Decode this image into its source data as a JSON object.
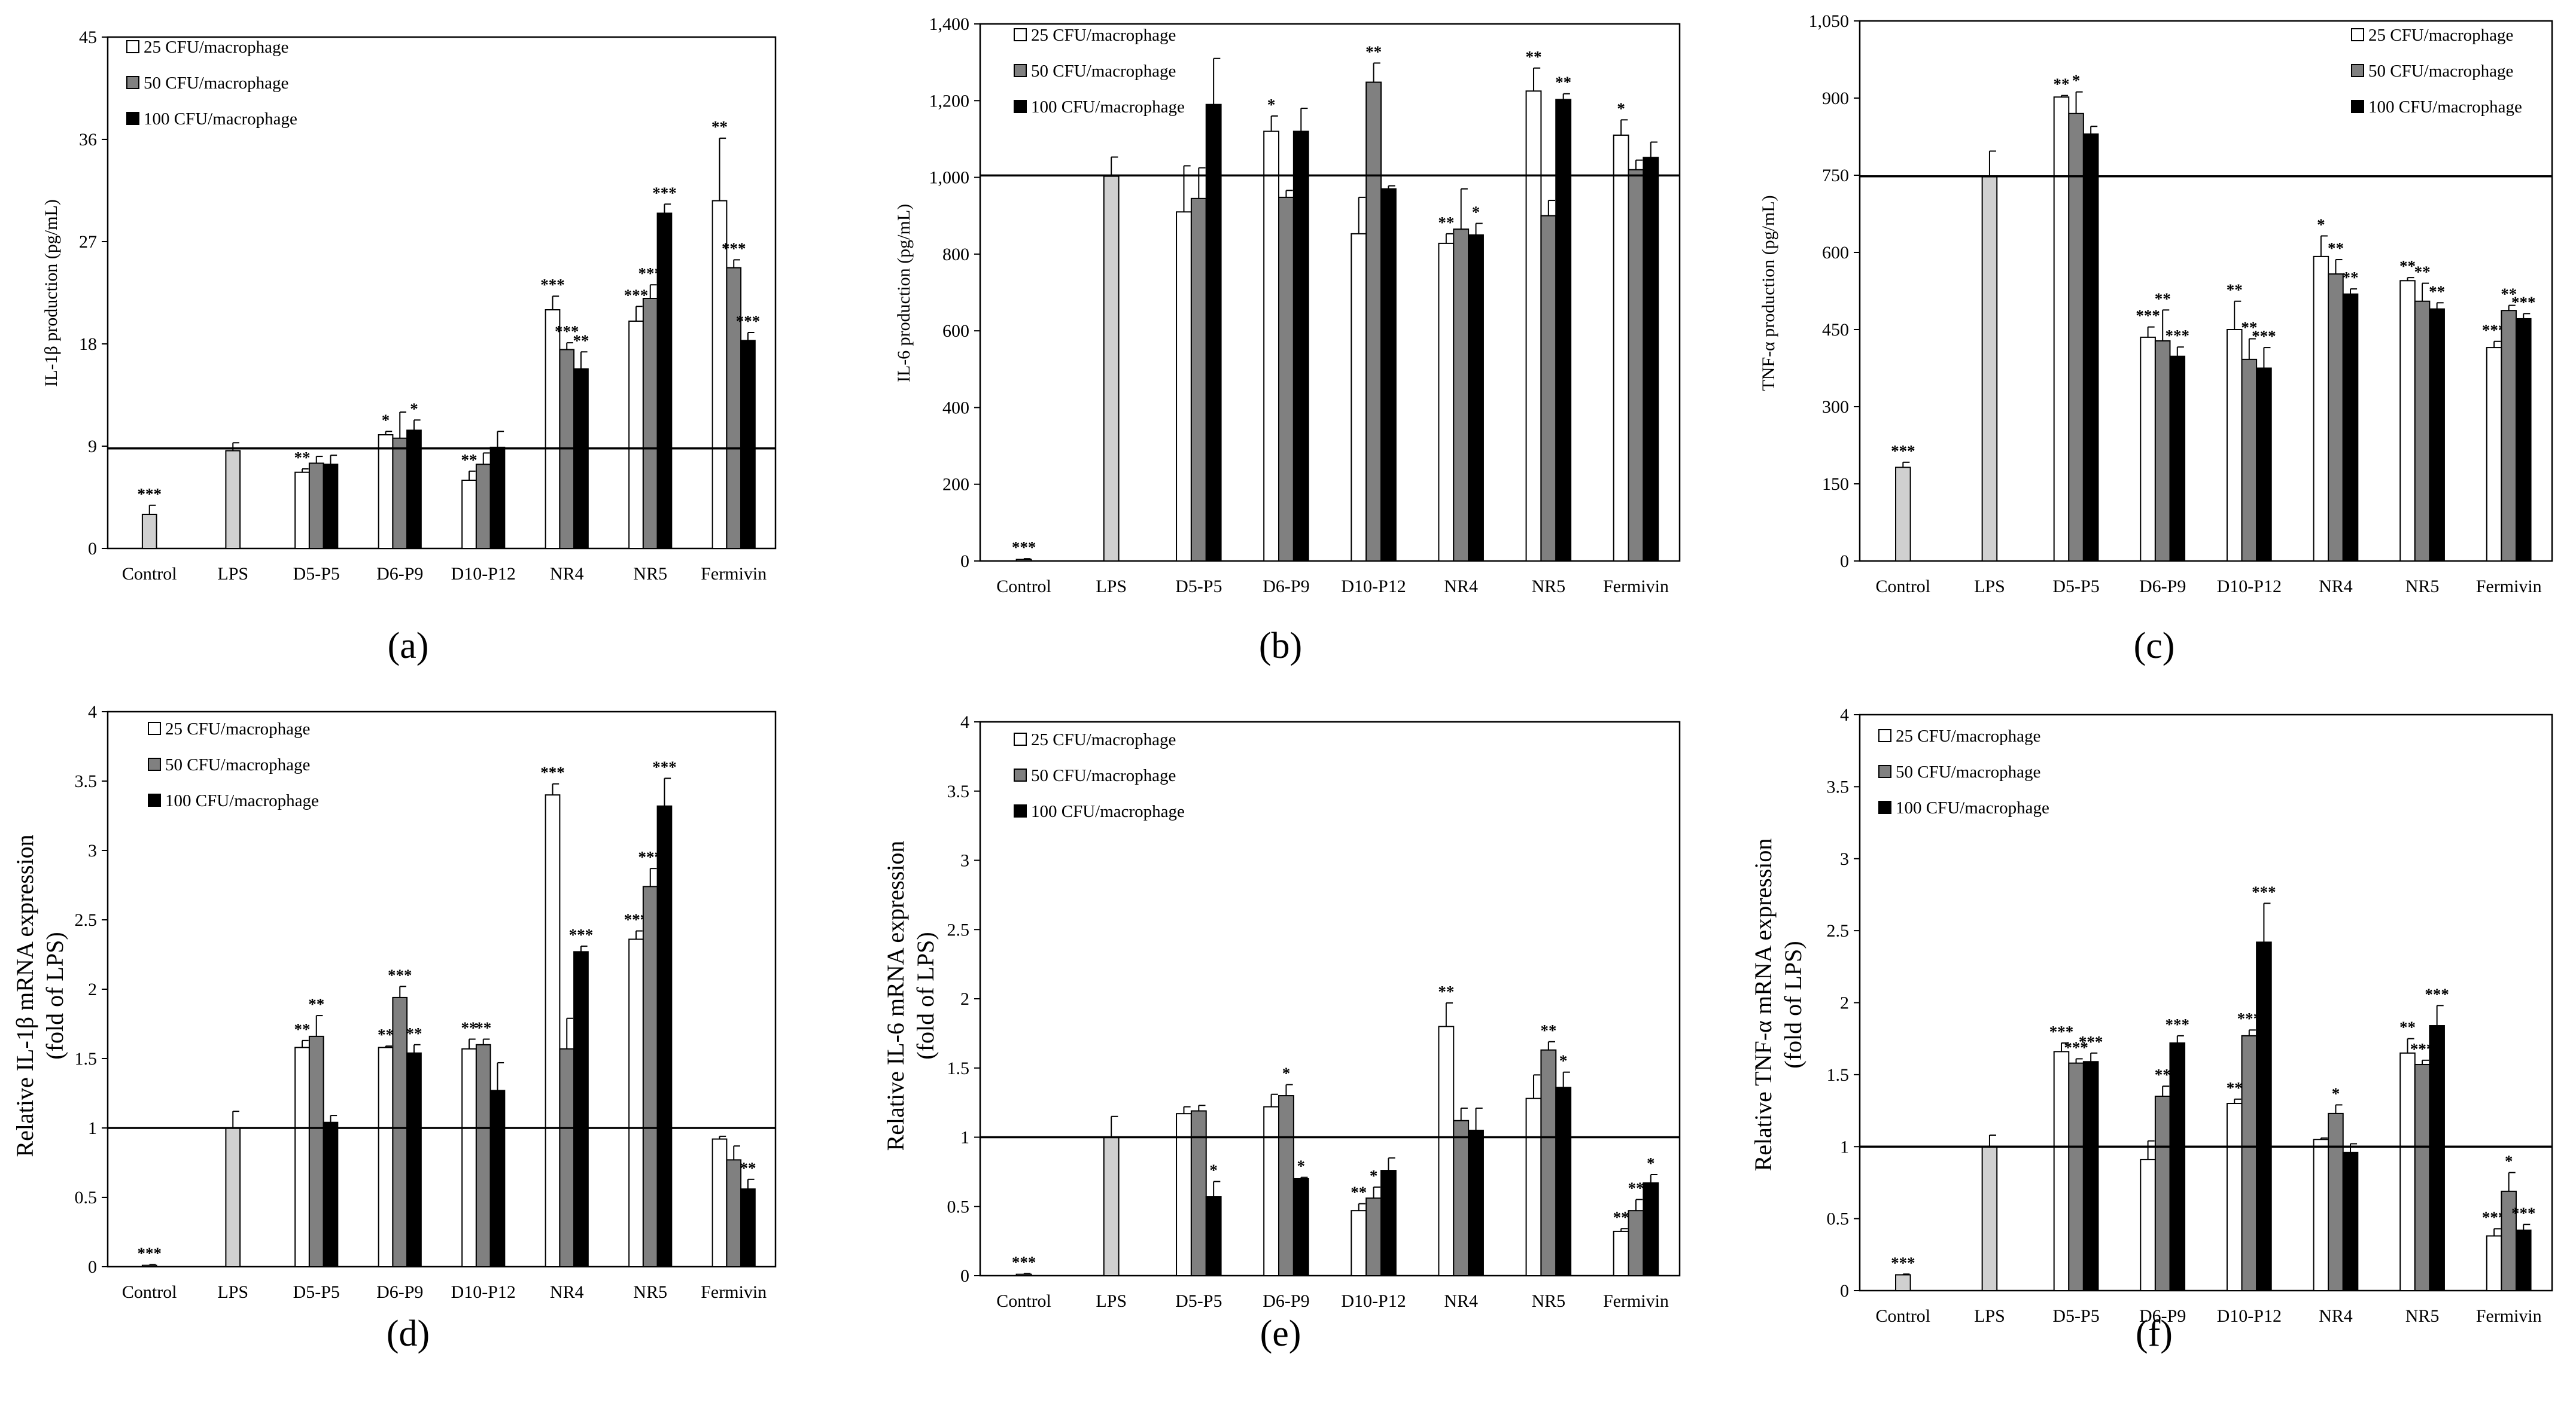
{
  "colors": {
    "s1": "#ffffff",
    "s2": "#808080",
    "s3": "#000000",
    "single": "#d0d0d0",
    "frame": "#000000"
  },
  "legend": [
    "25 CFU/macrophage",
    "50 CFU/macrophage",
    "100 CFU/macrophage"
  ],
  "chart_data": [
    {
      "type": "bar",
      "id": "a",
      "label": "(a)",
      "ylabel": [
        "IL-1β production (pg/mL)"
      ],
      "ylim": [
        0,
        45
      ],
      "yticks": [
        "0",
        "9",
        "18",
        "27",
        "36",
        "45"
      ],
      "categories": [
        "Control",
        "LPS",
        "D5-P5",
        "D6-P9",
        "D10-P12",
        "NR4",
        "NR5",
        "Fermivin"
      ],
      "hline": 8.8,
      "single": [
        {
          "cat": 0,
          "value": 3.0,
          "err": 0.8,
          "sig": "***"
        },
        {
          "cat": 1,
          "value": 8.6,
          "err": 0.7,
          "sig": ""
        }
      ],
      "series": [
        {
          "name": "25 CFU/macrophage",
          "values": [
            null,
            null,
            6.7,
            10.0,
            6.0,
            21.0,
            20.0,
            30.6
          ],
          "errors": [
            0,
            0,
            0.3,
            0.3,
            0.8,
            1.2,
            1.3,
            5.5
          ],
          "sig": [
            "",
            "",
            "**",
            "*",
            "**",
            "***",
            "***",
            "**"
          ]
        },
        {
          "name": "50 CFU/macrophage",
          "values": [
            null,
            null,
            7.5,
            9.7,
            7.4,
            17.5,
            22.0,
            24.7
          ],
          "errors": [
            0,
            0,
            0.6,
            2.3,
            1.0,
            0.6,
            1.2,
            0.7
          ],
          "sig": [
            "",
            "",
            "",
            "",
            "",
            "***",
            "***",
            "***"
          ]
        },
        {
          "name": "100 CFU/macrophage",
          "values": [
            null,
            null,
            7.4,
            10.4,
            8.9,
            15.8,
            29.5,
            18.3
          ],
          "errors": [
            0,
            0,
            0.8,
            0.9,
            1.4,
            1.5,
            0.8,
            0.7
          ],
          "sig": [
            "",
            "",
            "",
            "*",
            "",
            "**",
            "***",
            "***"
          ]
        }
      ]
    },
    {
      "type": "bar",
      "id": "b",
      "label": "(b)",
      "ylabel": [
        "IL-6 production (pg/mL)"
      ],
      "ylim": [
        0,
        1400
      ],
      "yticks": [
        "0",
        "200",
        "400",
        "600",
        "800",
        "1,000",
        "1,200",
        "1,400"
      ],
      "categories": [
        "Control",
        "LPS",
        "D5-P5",
        "D6-P9",
        "D10-P12",
        "NR4",
        "NR5",
        "Fermivin"
      ],
      "hline": 1005,
      "single": [
        {
          "cat": 0,
          "value": 4,
          "err": 2,
          "sig": "***"
        },
        {
          "cat": 1,
          "value": 1003,
          "err": 50,
          "sig": ""
        }
      ],
      "series": [
        {
          "name": "25 CFU/macrophage",
          "values": [
            null,
            null,
            910,
            1120,
            853,
            828,
            1225,
            1110
          ],
          "errors": [
            0,
            0,
            120,
            40,
            95,
            25,
            60,
            40
          ],
          "sig": [
            "",
            "",
            "",
            "*",
            "",
            "**",
            "**",
            "*"
          ]
        },
        {
          "name": "50 CFU/macrophage",
          "values": [
            null,
            null,
            945,
            948,
            1248,
            865,
            900,
            1020
          ],
          "errors": [
            0,
            0,
            80,
            18,
            50,
            105,
            40,
            25
          ],
          "sig": [
            "",
            "",
            "",
            "",
            "**",
            "",
            "",
            ""
          ]
        },
        {
          "name": "100 CFU/macrophage",
          "values": [
            null,
            null,
            1190,
            1120,
            970,
            850,
            1203,
            1052
          ],
          "errors": [
            0,
            0,
            120,
            60,
            8,
            30,
            15,
            40
          ],
          "sig": [
            "",
            "",
            "",
            "",
            "",
            "*",
            "**",
            ""
          ]
        }
      ]
    },
    {
      "type": "bar",
      "id": "c",
      "label": "(c)",
      "ylabel": [
        "TNF-α production (pg/mL)"
      ],
      "ylim": [
        0,
        1050
      ],
      "yticks": [
        "0",
        "150",
        "300",
        "450",
        "600",
        "750",
        "900",
        "1,050"
      ],
      "categories": [
        "Control",
        "LPS",
        "D5-P5",
        "D6-P9",
        "D10-P12",
        "NR4",
        "NR5",
        "Fermivin"
      ],
      "hline": 748,
      "single": [
        {
          "cat": 0,
          "value": 182,
          "err": 10,
          "sig": "***"
        },
        {
          "cat": 1,
          "value": 747,
          "err": 50,
          "sig": ""
        }
      ],
      "series": [
        {
          "name": "25 CFU/macrophage",
          "values": [
            null,
            null,
            902,
            435,
            450,
            592,
            545,
            415
          ],
          "errors": [
            0,
            0,
            3,
            20,
            55,
            40,
            6,
            12
          ],
          "sig": [
            "",
            "",
            "**",
            "***",
            "**",
            "*",
            "**",
            "***"
          ]
        },
        {
          "name": "50 CFU/macrophage",
          "values": [
            null,
            null,
            870,
            428,
            392,
            558,
            505,
            487
          ],
          "errors": [
            0,
            0,
            42,
            60,
            40,
            28,
            35,
            10
          ],
          "sig": [
            "",
            "",
            "*",
            "**",
            "**",
            "**",
            "**",
            "**"
          ]
        },
        {
          "name": "100 CFU/macrophage",
          "values": [
            null,
            null,
            830,
            398,
            375,
            519,
            490,
            471
          ],
          "errors": [
            0,
            0,
            15,
            18,
            40,
            10,
            12,
            10
          ],
          "sig": [
            "",
            "",
            "",
            "***",
            "***",
            "**",
            "**",
            "***"
          ]
        }
      ]
    },
    {
      "type": "bar",
      "id": "d",
      "label": "(d)",
      "ylabel": [
        "Relative IL-1β mRNA expression",
        "(fold of LPS)"
      ],
      "ylim": [
        0,
        4
      ],
      "yticks": [
        "0",
        "0.5",
        "1",
        "1.5",
        "2",
        "2.5",
        "3",
        "3.5",
        "4"
      ],
      "categories": [
        "Control",
        "LPS",
        "D5-P5",
        "D6-P9",
        "D10-P12",
        "NR4",
        "NR5",
        "Fermivin"
      ],
      "hline": 1.0,
      "single": [
        {
          "cat": 0,
          "value": 0.01,
          "err": 0.005,
          "sig": "***"
        },
        {
          "cat": 1,
          "value": 1.0,
          "err": 0.12,
          "sig": ""
        }
      ],
      "series": [
        {
          "name": "25 CFU/macrophage",
          "values": [
            null,
            null,
            1.58,
            1.58,
            1.57,
            3.4,
            2.36,
            0.92
          ],
          "errors": [
            0,
            0,
            0.05,
            0.01,
            0.07,
            0.08,
            0.06,
            0.02
          ],
          "sig": [
            "",
            "",
            "**",
            "**",
            "**",
            "***",
            "***",
            ""
          ]
        },
        {
          "name": "50 CFU/macrophage",
          "values": [
            null,
            null,
            1.66,
            1.94,
            1.6,
            1.57,
            2.74,
            0.77
          ],
          "errors": [
            0,
            0,
            0.15,
            0.08,
            0.04,
            0.22,
            0.13,
            0.1
          ],
          "sig": [
            "",
            "",
            "**",
            "***",
            "**",
            "",
            "***",
            ""
          ]
        },
        {
          "name": "100 CFU/macrophage",
          "values": [
            null,
            null,
            1.04,
            1.54,
            1.27,
            2.27,
            3.32,
            0.56
          ],
          "errors": [
            0,
            0,
            0.05,
            0.06,
            0.2,
            0.04,
            0.2,
            0.07
          ],
          "sig": [
            "",
            "",
            "",
            "**",
            "",
            "***",
            "***",
            "**"
          ]
        }
      ]
    },
    {
      "type": "bar",
      "id": "e",
      "label": "(e)",
      "ylabel": [
        "Relative IL-6 mRNA expression",
        "(fold of LPS)"
      ],
      "ylim": [
        0,
        4
      ],
      "yticks": [
        "0",
        "0.5",
        "1",
        "1.5",
        "2",
        "2.5",
        "3",
        "3.5",
        "4"
      ],
      "categories": [
        "Control",
        "LPS",
        "D5-P5",
        "D6-P9",
        "D10-P12",
        "NR4",
        "NR5",
        "Fermivin"
      ],
      "hline": 1.0,
      "single": [
        {
          "cat": 0,
          "value": 0.01,
          "err": 0.005,
          "sig": "***"
        },
        {
          "cat": 1,
          "value": 1.0,
          "err": 0.15,
          "sig": ""
        }
      ],
      "series": [
        {
          "name": "25 CFU/macrophage",
          "values": [
            null,
            null,
            1.17,
            1.22,
            0.47,
            1.8,
            1.28,
            0.32
          ],
          "errors": [
            0,
            0,
            0.05,
            0.09,
            0.05,
            0.17,
            0.17,
            0.02
          ],
          "sig": [
            "",
            "",
            "",
            "",
            "**",
            "**",
            "",
            "**"
          ]
        },
        {
          "name": "50 CFU/macrophage",
          "values": [
            null,
            null,
            1.19,
            1.3,
            0.56,
            1.12,
            1.63,
            0.47
          ],
          "errors": [
            0,
            0,
            0.04,
            0.08,
            0.08,
            0.09,
            0.06,
            0.08
          ],
          "sig": [
            "",
            "",
            "",
            "*",
            "*",
            "",
            "**",
            "**"
          ]
        },
        {
          "name": "100 CFU/macrophage",
          "values": [
            null,
            null,
            0.57,
            0.7,
            0.76,
            1.05,
            1.36,
            0.67
          ],
          "errors": [
            0,
            0,
            0.11,
            0.01,
            0.09,
            0.16,
            0.11,
            0.06
          ],
          "sig": [
            "",
            "",
            "*",
            "*",
            "",
            "",
            "*",
            "*"
          ]
        }
      ]
    },
    {
      "type": "bar",
      "id": "f",
      "label": "(f)",
      "ylabel": [
        "Relative TNF-α mRNA expression",
        "(fold of LPS)"
      ],
      "ylim": [
        0,
        4
      ],
      "yticks": [
        "0",
        "0.5",
        "1",
        "1.5",
        "2",
        "2.5",
        "3",
        "3.5",
        "4"
      ],
      "categories": [
        "Control",
        "LPS",
        "D5-P5",
        "D6-P9",
        "D10-P12",
        "NR4",
        "NR5",
        "Fermivin"
      ],
      "hline": 1.0,
      "single": [
        {
          "cat": 0,
          "value": 0.11,
          "err": 0.005,
          "sig": "***"
        },
        {
          "cat": 1,
          "value": 1.0,
          "err": 0.08,
          "sig": ""
        }
      ],
      "series": [
        {
          "name": "25 CFU/macrophage",
          "values": [
            null,
            null,
            1.66,
            0.91,
            1.3,
            1.05,
            1.65,
            0.38
          ],
          "errors": [
            0,
            0,
            0.06,
            0.13,
            0.03,
            0.01,
            0.1,
            0.05
          ],
          "sig": [
            "",
            "",
            "***",
            "",
            "**",
            "",
            "**",
            "***"
          ]
        },
        {
          "name": "50 CFU/macrophage",
          "values": [
            null,
            null,
            1.58,
            1.35,
            1.77,
            1.23,
            1.57,
            0.69
          ],
          "errors": [
            0,
            0,
            0.03,
            0.07,
            0.04,
            0.06,
            0.03,
            0.13
          ],
          "sig": [
            "",
            "",
            "***",
            "**",
            "***",
            "*",
            "***",
            "*"
          ]
        },
        {
          "name": "100 CFU/macrophage",
          "values": [
            null,
            null,
            1.59,
            1.72,
            2.42,
            0.96,
            1.84,
            0.42
          ],
          "errors": [
            0,
            0,
            0.06,
            0.05,
            0.27,
            0.06,
            0.14,
            0.04
          ],
          "sig": [
            "",
            "",
            "***",
            "***",
            "***",
            "",
            "***",
            "***"
          ]
        }
      ]
    }
  ]
}
